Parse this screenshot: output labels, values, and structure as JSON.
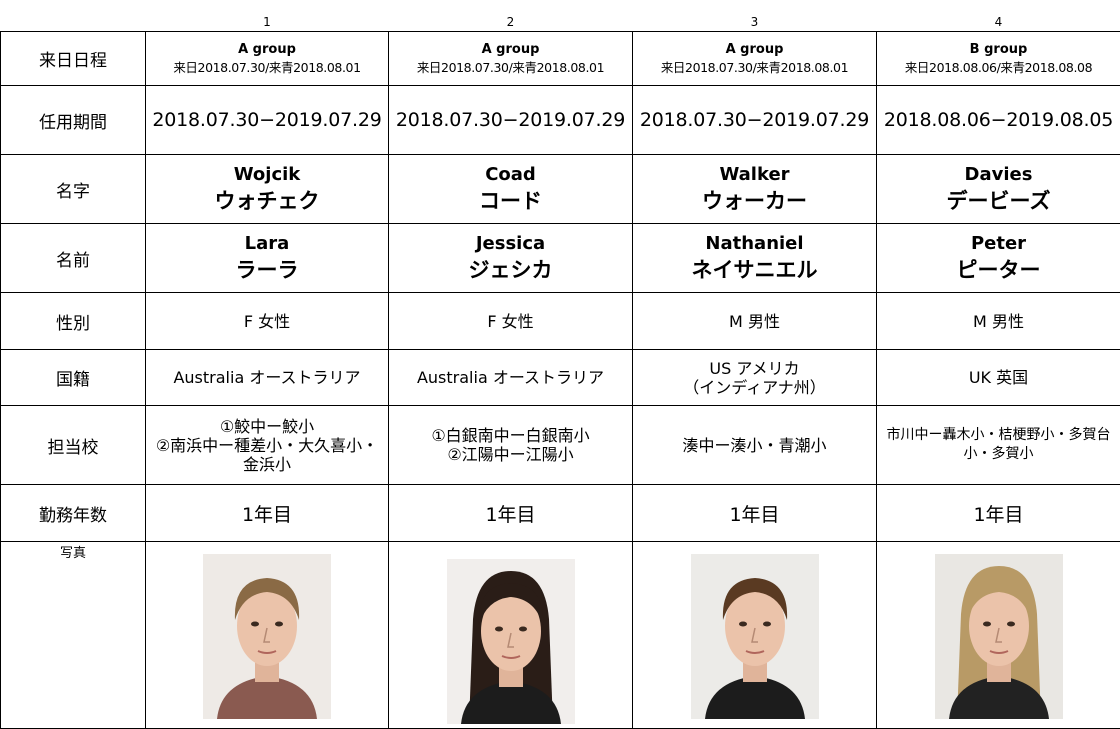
{
  "table": {
    "header": [
      "1",
      "2",
      "3",
      "4"
    ],
    "rows": [
      {
        "label": "来日日程",
        "cells": [
          [
            "A group",
            "来日2018.07.30/来青2018.08.01"
          ],
          [
            "A group",
            "来日2018.07.30/来青2018.08.01"
          ],
          [
            "A group",
            "来日2018.07.30/来青2018.08.01"
          ],
          [
            "B group",
            "来日2018.08.06/来青2018.08.08"
          ]
        ]
      },
      {
        "label": "任用期間",
        "cells": [
          [
            "2018.07.30−2019.07.29"
          ],
          [
            "2018.07.30−2019.07.29"
          ],
          [
            "2018.07.30−2019.07.29"
          ],
          [
            "2018.08.06−2019.08.05"
          ]
        ]
      },
      {
        "label": "名字",
        "cells": [
          [
            "Wojcik",
            "ウォチェク"
          ],
          [
            "Coad",
            "コード"
          ],
          [
            "Walker",
            "ウォーカー"
          ],
          [
            "Davies",
            "デービーズ"
          ]
        ]
      },
      {
        "label": "名前",
        "cells": [
          [
            "Lara",
            "ラーラ"
          ],
          [
            "Jessica",
            "ジェシカ"
          ],
          [
            "Nathaniel",
            "ネイサニエル"
          ],
          [
            "Peter",
            "ピーター"
          ]
        ]
      },
      {
        "label": "性別",
        "cells": [
          [
            "F  女性"
          ],
          [
            "F  女性"
          ],
          [
            "M  男性"
          ],
          [
            "M 男性"
          ]
        ]
      },
      {
        "label": "国籍",
        "cells": [
          [
            "Australia  オーストラリア"
          ],
          [
            "Australia  オーストラリア"
          ],
          [
            "US  アメリカ",
            "（インディアナ州）"
          ],
          [
            "UK  英国"
          ]
        ]
      },
      {
        "label": "担当校",
        "cells": [
          [
            "①鮫中ー鮫小",
            "②南浜中ー種差小・大久喜小・金浜小"
          ],
          [
            "①白銀南中ー白銀南小",
            "②江陽中ー江陽小"
          ],
          [
            "湊中ー湊小・青潮小"
          ],
          [
            "市川中ー轟木小・桔梗野小・多賀台小・多賀小"
          ]
        ]
      },
      {
        "label": "勤務年数",
        "cells": [
          [
            "1年目"
          ],
          [
            "1年目"
          ],
          [
            "1年目"
          ],
          [
            "1年目"
          ]
        ]
      },
      {
        "label": "写真"
      }
    ]
  }
}
